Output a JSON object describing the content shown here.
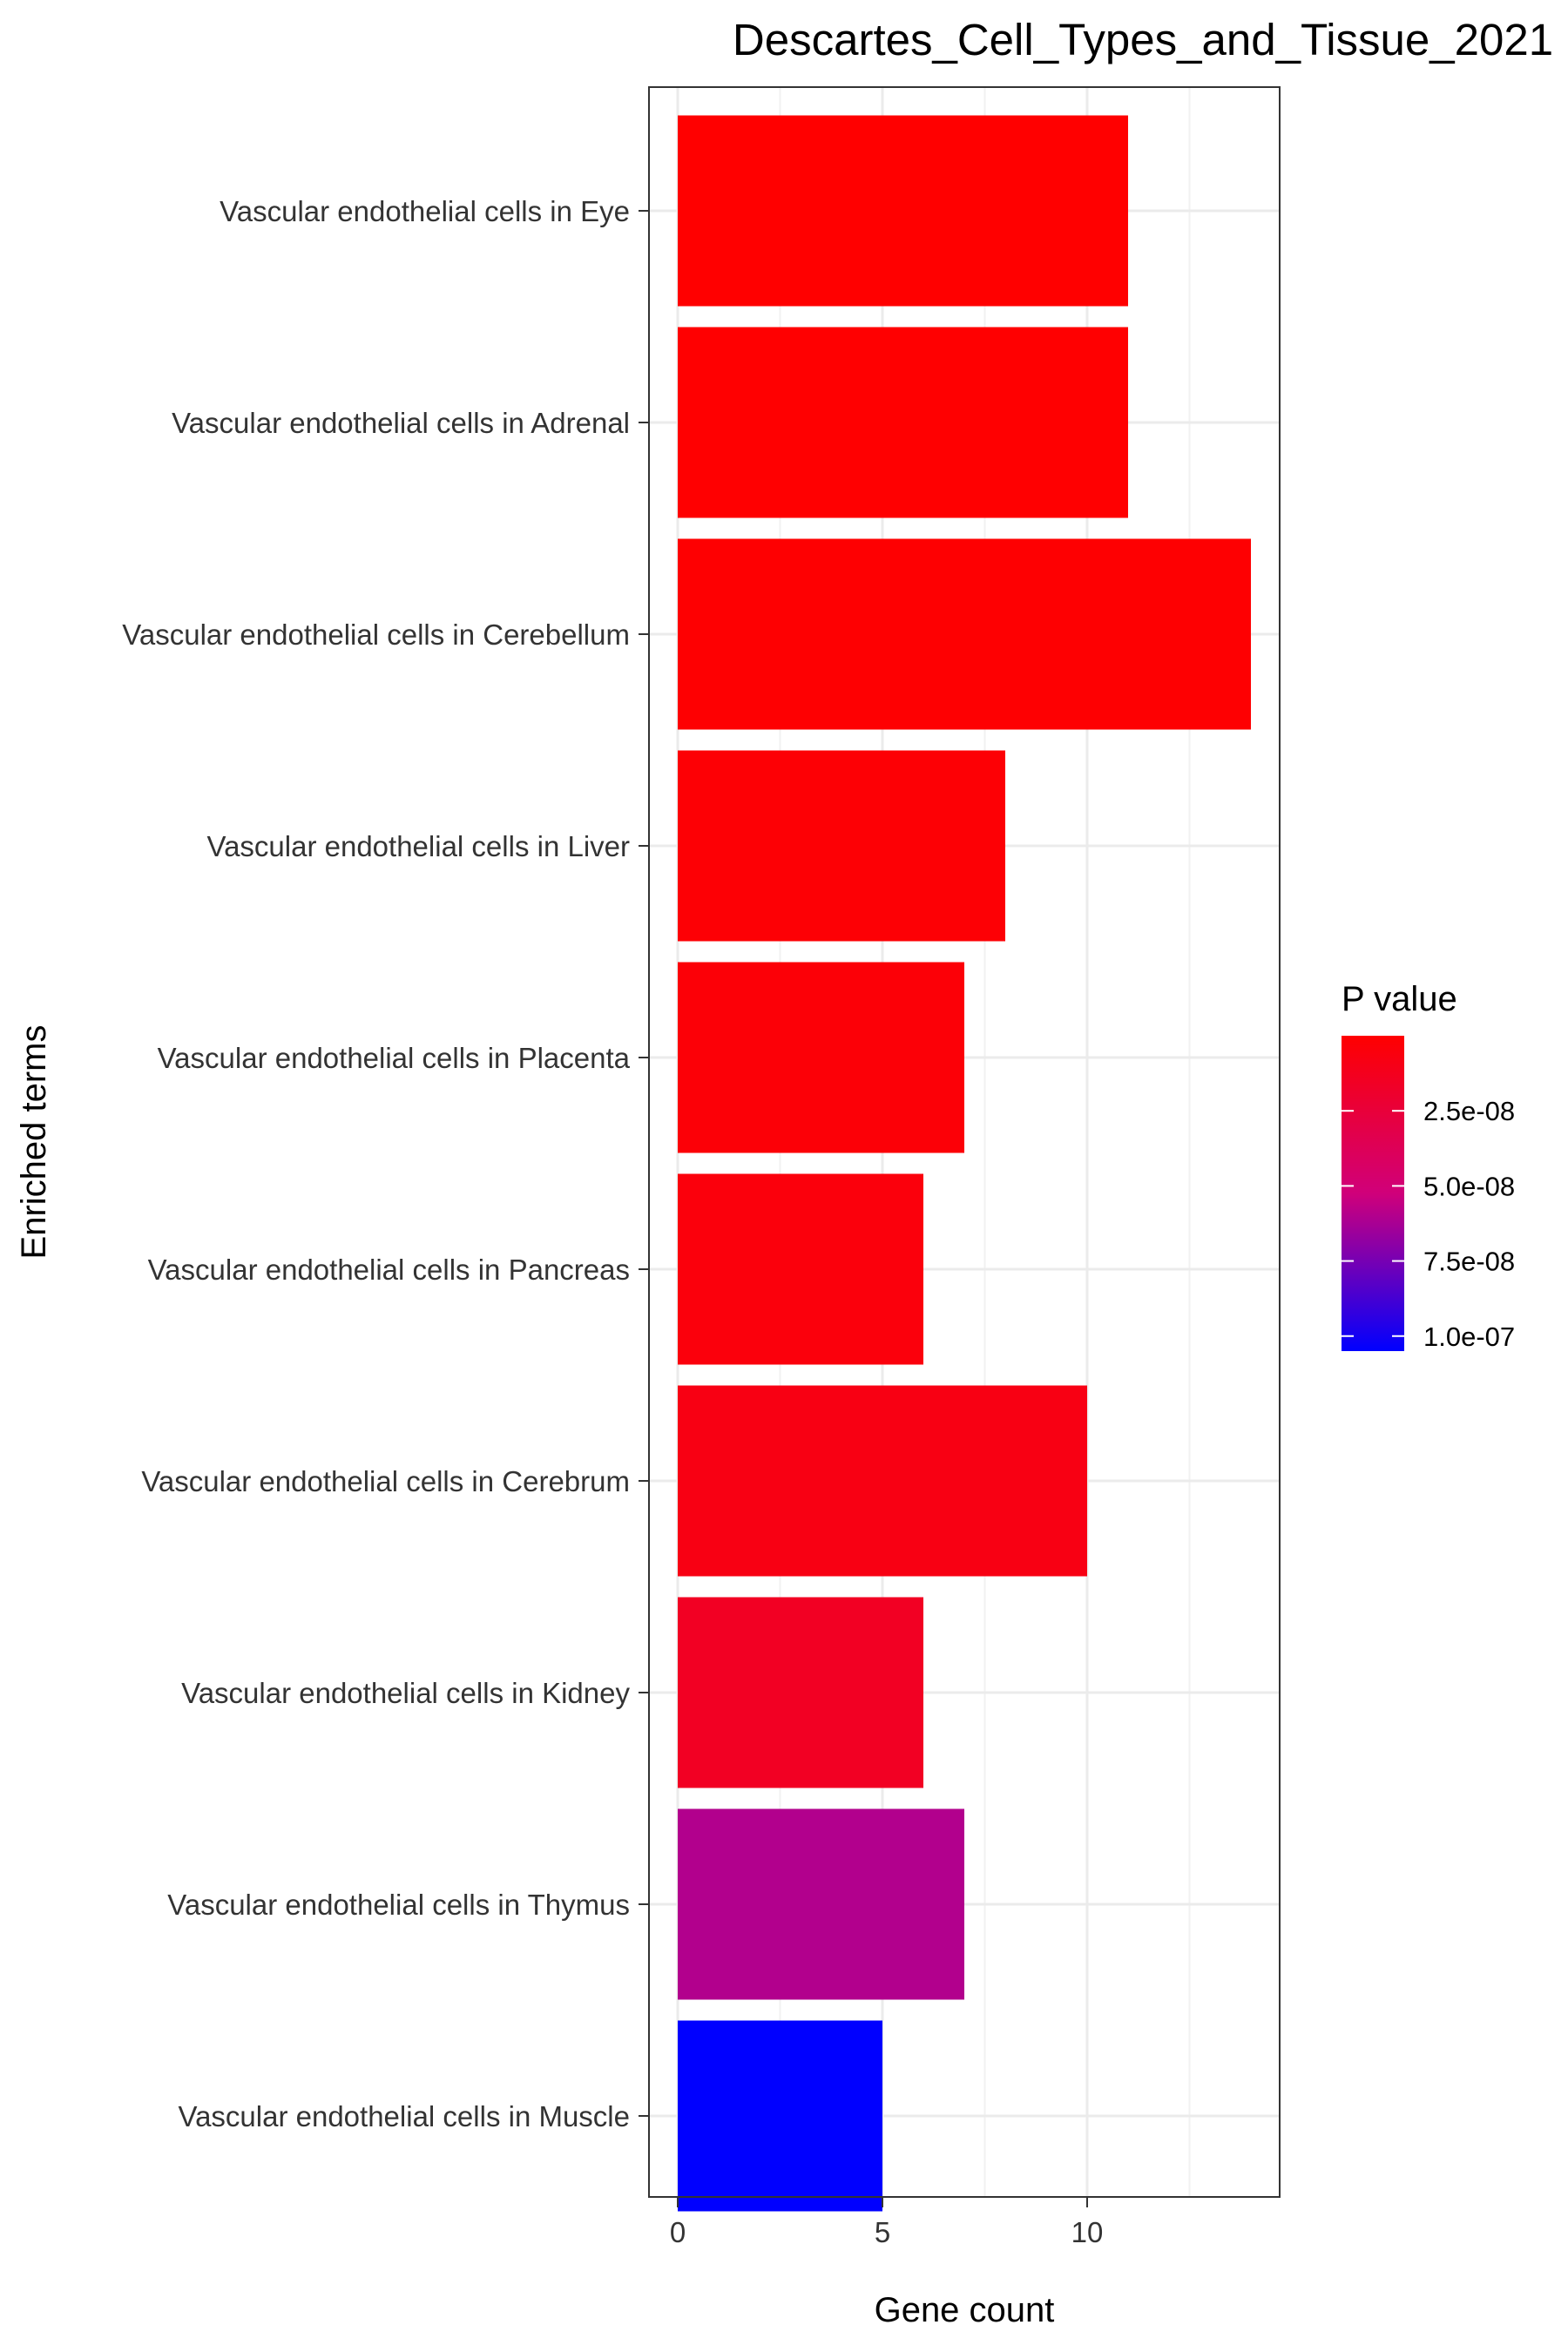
{
  "chart_data": {
    "type": "bar",
    "orientation": "horizontal",
    "title": "Descartes_Cell_Types_and_Tissue_2021",
    "xlabel": "Gene count",
    "ylabel": "Enriched terms",
    "xlim": [
      0,
      14
    ],
    "x_ticks": [
      0,
      5,
      10
    ],
    "grid": true,
    "legend_position": "right",
    "categories": [
      "Vascular endothelial cells in Eye",
      "Vascular endothelial cells in Adrenal",
      "Vascular endothelial cells in Cerebellum",
      "Vascular endothelial cells in Liver",
      "Vascular endothelial cells in Placenta",
      "Vascular endothelial cells in Pancreas",
      "Vascular endothelial cells in Cerebrum",
      "Vascular endothelial cells in Kidney",
      "Vascular endothelial cells in Thymus",
      "Vascular endothelial cells in Muscle"
    ],
    "values": [
      11,
      11,
      14,
      8,
      7,
      6,
      10,
      6,
      7,
      5
    ],
    "p_values": [
      1e-10,
      5e-10,
      1e-09,
      2e-09,
      3e-09,
      5e-09,
      8e-09,
      1.5e-08,
      6e-08,
      1.05e-07
    ],
    "color_scale": {
      "title": "P value",
      "low_color": "#ff0000",
      "high_color": "#0000ff",
      "min": 0,
      "max": 1.05e-07,
      "ticks": [
        2.5e-08,
        5e-08,
        7.5e-08,
        1e-07
      ],
      "tick_labels": [
        "2.5e-08",
        "5.0e-08",
        "7.5e-08",
        "1.0e-07"
      ]
    }
  }
}
